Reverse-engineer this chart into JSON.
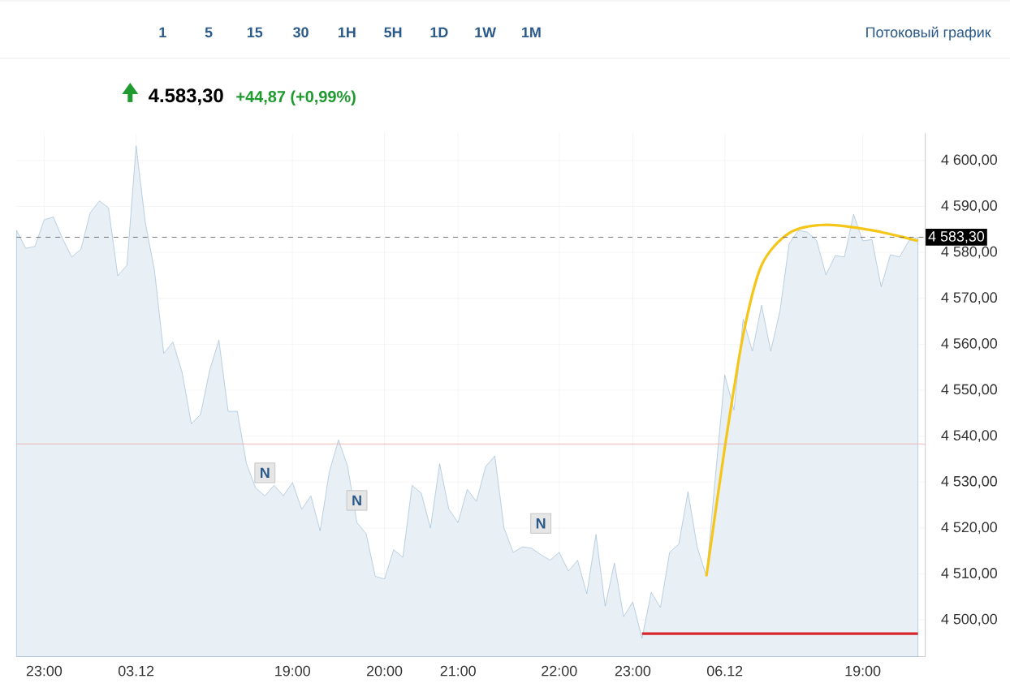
{
  "chart_data": {
    "type": "area",
    "title": "4.583,30",
    "subtitle": "+44,87 (+0,99%)",
    "annotations": [
      "1",
      "5",
      "15",
      "30",
      "1H",
      "5H",
      "1D",
      "1W",
      "1M",
      "Потоковый график",
      {
        "text": "N",
        "y": 4532
      },
      {
        "text": "N",
        "y": 4526
      },
      {
        "text": "N",
        "y": 4521
      }
    ],
    "categories": [
      null,
      null,
      null,
      "23:00",
      null,
      null,
      null,
      null,
      null,
      null,
      null,
      null,
      null,
      "03.12",
      null,
      null,
      null,
      null,
      null,
      null,
      null,
      null,
      null,
      null,
      null,
      null,
      null,
      null,
      null,
      null,
      "19:00",
      null,
      null,
      null,
      null,
      null,
      null,
      null,
      null,
      null,
      "20:00",
      null,
      null,
      null,
      null,
      null,
      null,
      null,
      "21:00",
      null,
      null,
      null,
      null,
      null,
      null,
      null,
      null,
      null,
      null,
      "22:00",
      null,
      null,
      null,
      null,
      null,
      null,
      null,
      "23:00",
      null,
      null,
      null,
      null,
      null,
      null,
      null,
      null,
      null,
      "06.12",
      null,
      null,
      null,
      null,
      null,
      null,
      null,
      null,
      null,
      null,
      null,
      null,
      null,
      null,
      "19:00",
      null,
      null,
      null,
      null,
      null,
      null
    ],
    "ylim": [
      4492,
      4606
    ],
    "yticks": [
      {
        "value": 4500,
        "label": "4 500,00"
      },
      {
        "value": 4510,
        "label": "4 510,00"
      },
      {
        "value": 4520,
        "label": "4 520,00"
      },
      {
        "value": 4530,
        "label": "4 530,00"
      },
      {
        "value": 4540,
        "label": "4 540,00"
      },
      {
        "value": 4550,
        "label": "4 550,00"
      },
      {
        "value": 4560,
        "label": "4 560,00"
      },
      {
        "value": 4570,
        "label": "4 570,00"
      },
      {
        "value": 4580,
        "label": "4 580,00"
      },
      {
        "value": 4590,
        "label": "4 590,00"
      },
      {
        "value": 4600,
        "label": "4 600,00"
      }
    ],
    "grid": true,
    "ref_lines": [
      {
        "axis": "y",
        "value": 4583.3,
        "label": "4 583,30",
        "color": "#555555",
        "line_style": "dashed"
      },
      {
        "axis": "y",
        "value": 4538.3,
        "color": "#e8a8a8",
        "line_style": "solid"
      }
    ],
    "series": [
      {
        "color": "#7fa7c9",
        "values": [
          4584.8,
          4580.9,
          4581.3,
          4587.1,
          4587.7,
          4583,
          4579,
          4580.7,
          4588.6,
          4591.2,
          4589.7,
          4574.9,
          4577.2,
          4603.2,
          4586.5,
          4576,
          4558,
          4560.5,
          4553.9,
          4542.7,
          4544.7,
          4554.4,
          4560.9,
          4545.4,
          4545.4,
          4534,
          4528.7,
          4527,
          4529.3,
          4527,
          4529.9,
          4524.1,
          4527,
          4519.4,
          4532.2,
          4539.2,
          4533.4,
          4521.2,
          4518.8,
          4509.5,
          4508.9,
          4515.3,
          4513.6,
          4529.3,
          4527.6,
          4520,
          4534,
          4524.1,
          4521.2,
          4528.4,
          4525.8,
          4533.4,
          4535.7,
          4520,
          4514.7,
          4515.9,
          4515.6,
          4514.2,
          4513,
          4514.7,
          4510.6,
          4513,
          4505.7,
          4518.6,
          4503,
          4512.4,
          4500.7,
          4503.9,
          4496,
          4506,
          4502.7,
          4514.7,
          4516.5,
          4527.9,
          4515.9,
          4509.5,
          4531.7,
          4553.3,
          4545.7,
          4565.5,
          4558.5,
          4568.5,
          4558.5,
          4567.3,
          4581.9,
          4584.8,
          4584.4,
          4582.5,
          4575.1,
          4579.3,
          4579,
          4588.3,
          4582.5,
          4582.8,
          4572.5,
          4579.5,
          4579,
          4582.5,
          4583.3
        ]
      },
      {
        "type": "line",
        "color": "#f5c518",
        "values": [
          null,
          null,
          null,
          null,
          null,
          null,
          null,
          null,
          null,
          null,
          null,
          null,
          null,
          null,
          null,
          null,
          null,
          null,
          null,
          null,
          null,
          null,
          null,
          null,
          null,
          null,
          null,
          null,
          null,
          null,
          null,
          null,
          null,
          null,
          null,
          null,
          null,
          null,
          null,
          null,
          null,
          null,
          null,
          null,
          null,
          null,
          null,
          null,
          null,
          null,
          null,
          null,
          null,
          null,
          null,
          null,
          null,
          null,
          null,
          null,
          null,
          null,
          null,
          null,
          null,
          null,
          null,
          null,
          null,
          null,
          null,
          null,
          null,
          null,
          null,
          4509.5,
          null,
          4537.5,
          null,
          4562,
          null,
          4577.2,
          null,
          null,
          4584.2,
          null,
          null,
          null,
          4586,
          null,
          null,
          null,
          null,
          4584.8,
          null,
          null,
          null,
          null,
          4582.5
        ]
      },
      {
        "type": "line",
        "color": "#d9262c",
        "values": [
          null,
          null,
          null,
          null,
          null,
          null,
          null,
          null,
          null,
          null,
          null,
          null,
          null,
          null,
          null,
          null,
          null,
          null,
          null,
          null,
          null,
          null,
          null,
          null,
          null,
          null,
          null,
          null,
          null,
          null,
          null,
          null,
          null,
          null,
          null,
          null,
          null,
          null,
          null,
          null,
          null,
          null,
          null,
          null,
          null,
          null,
          null,
          null,
          null,
          null,
          null,
          null,
          null,
          null,
          null,
          null,
          null,
          null,
          null,
          null,
          null,
          null,
          null,
          null,
          null,
          null,
          null,
          null,
          4497,
          4497,
          4497,
          4497,
          4497,
          4497,
          4497,
          4497,
          4497,
          4497,
          4497,
          4497,
          4497,
          4497,
          4497,
          4497,
          4497,
          4497,
          4497,
          4497,
          4497,
          4497,
          4497,
          4497,
          4497,
          4497,
          4497,
          4497,
          4497,
          4497,
          4497
        ]
      }
    ]
  }
}
